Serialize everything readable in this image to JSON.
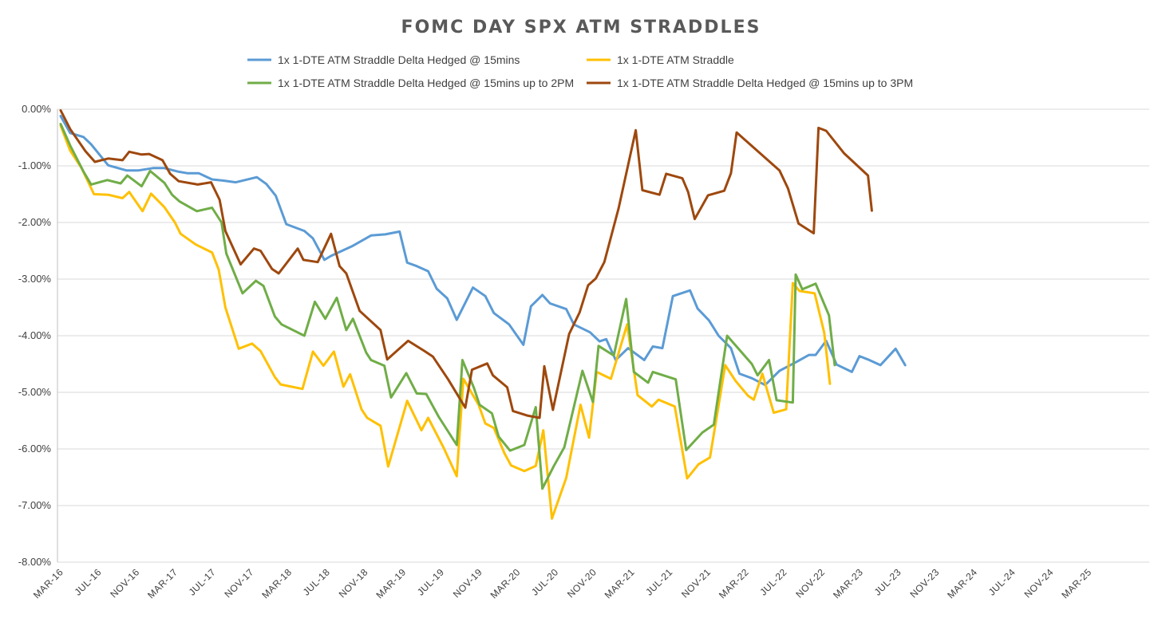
{
  "chart_data": {
    "type": "line",
    "title": "FOMC DAY SPX ATM STRADDLES",
    "xlabel": "",
    "ylabel": "",
    "ylim": [
      -0.08,
      0.0
    ],
    "yticks": [
      0.0,
      -0.01,
      -0.02,
      -0.03,
      -0.04,
      -0.05,
      -0.06,
      -0.07,
      -0.08
    ],
    "ytick_labels": [
      "0.00%",
      "-1.00%",
      "-2.00%",
      "-3.00%",
      "-4.00%",
      "-5.00%",
      "-6.00%",
      "-7.00%",
      "-8.00%"
    ],
    "x_tick_labels": [
      "MAR-16",
      "JUL-16",
      "NOV-16",
      "MAR-17",
      "JUL-17",
      "NOV-17",
      "MAR-18",
      "JUL-18",
      "NOV-18",
      "MAR-19",
      "JUL-19",
      "NOV-19",
      "MAR-20",
      "JUL-20",
      "NOV-20",
      "MAR-21",
      "JUL-21",
      "NOV-21",
      "MAR-22",
      "JUL-22",
      "NOV-22",
      "MAR-23",
      "JUL-23",
      "NOV-23",
      "MAR-24",
      "JUL-24",
      "NOV-24",
      "MAR-25"
    ],
    "x_tick_months": [
      0,
      4,
      8,
      12,
      16,
      20,
      24,
      28,
      32,
      36,
      40,
      44,
      48,
      52,
      56,
      60,
      64,
      68,
      72,
      76,
      80,
      84,
      88,
      92,
      96,
      100,
      104,
      108
    ],
    "x_range_months": [
      0,
      114
    ],
    "grid": true,
    "legend_position": "top",
    "series": [
      {
        "name": "1x 1-DTE ATM Straddle Delta Hedged @ 15mins",
        "color": "#5B9BD5",
        "points": [
          [
            0,
            -0.12
          ],
          [
            1,
            -0.42
          ],
          [
            2.4,
            -0.49
          ],
          [
            3.2,
            -0.62
          ],
          [
            5,
            -0.99
          ],
          [
            6.9,
            -1.08
          ],
          [
            8.2,
            -1.08
          ],
          [
            9.7,
            -1.04
          ],
          [
            10.9,
            -1.04
          ],
          [
            12.3,
            -1.1
          ],
          [
            13.3,
            -1.13
          ],
          [
            14.5,
            -1.13
          ],
          [
            15.9,
            -1.24
          ],
          [
            17.1,
            -1.26
          ],
          [
            18.4,
            -1.29
          ],
          [
            20.6,
            -1.2
          ],
          [
            21.6,
            -1.32
          ],
          [
            22.6,
            -1.53
          ],
          [
            23.7,
            -2.03
          ],
          [
            25.6,
            -2.15
          ],
          [
            26.5,
            -2.28
          ],
          [
            27.7,
            -2.66
          ],
          [
            28.4,
            -2.59
          ],
          [
            30.6,
            -2.42
          ],
          [
            32.6,
            -2.23
          ],
          [
            34.1,
            -2.21
          ],
          [
            35.6,
            -2.16
          ],
          [
            36.4,
            -2.71
          ],
          [
            37.4,
            -2.77
          ],
          [
            38.6,
            -2.86
          ],
          [
            39.5,
            -3.17
          ],
          [
            40.6,
            -3.34
          ],
          [
            41.6,
            -3.72
          ],
          [
            43.3,
            -3.15
          ],
          [
            44.6,
            -3.3
          ],
          [
            45.5,
            -3.6
          ],
          [
            47.1,
            -3.8
          ],
          [
            48.6,
            -4.16
          ],
          [
            49.4,
            -3.48
          ],
          [
            50.6,
            -3.28
          ],
          [
            51.4,
            -3.43
          ],
          [
            53.1,
            -3.53
          ],
          [
            53.9,
            -3.8
          ],
          [
            55.6,
            -3.94
          ],
          [
            56.6,
            -4.1
          ],
          [
            57.3,
            -4.06
          ],
          [
            58.3,
            -4.43
          ],
          [
            59.6,
            -4.22
          ],
          [
            61.3,
            -4.43
          ],
          [
            62.2,
            -4.19
          ],
          [
            63.2,
            -4.22
          ],
          [
            64.3,
            -3.3
          ],
          [
            66.1,
            -3.2
          ],
          [
            66.9,
            -3.52
          ],
          [
            68.1,
            -3.73
          ],
          [
            69.1,
            -4.0
          ],
          [
            70.4,
            -4.22
          ],
          [
            71.3,
            -4.67
          ],
          [
            72.6,
            -4.75
          ],
          [
            74,
            -4.87
          ],
          [
            75.5,
            -4.62
          ],
          [
            77.3,
            -4.46
          ],
          [
            78.6,
            -4.34
          ],
          [
            79.3,
            -4.34
          ],
          [
            80.4,
            -4.09
          ],
          [
            81.5,
            -4.51
          ],
          [
            83.1,
            -4.64
          ],
          [
            83.9,
            -4.36
          ],
          [
            84.8,
            -4.42
          ],
          [
            86.1,
            -4.52
          ],
          [
            87.7,
            -4.23
          ],
          [
            88.7,
            -4.52
          ]
        ]
      },
      {
        "name": "1x 1-DTE ATM Straddle",
        "color": "#FFC000",
        "points": [
          [
            0,
            -0.29
          ],
          [
            1,
            -0.73
          ],
          [
            2.2,
            -1.04
          ],
          [
            3.5,
            -1.5
          ],
          [
            5,
            -1.51
          ],
          [
            6.5,
            -1.57
          ],
          [
            7.2,
            -1.46
          ],
          [
            8.6,
            -1.8
          ],
          [
            9.5,
            -1.49
          ],
          [
            10.9,
            -1.73
          ],
          [
            12,
            -2.0
          ],
          [
            12.6,
            -2.2
          ],
          [
            14.2,
            -2.39
          ],
          [
            15.9,
            -2.53
          ],
          [
            16.6,
            -2.83
          ],
          [
            17.3,
            -3.5
          ],
          [
            18.7,
            -4.23
          ],
          [
            20.1,
            -4.14
          ],
          [
            21,
            -4.27
          ],
          [
            22.5,
            -4.73
          ],
          [
            23.1,
            -4.86
          ],
          [
            25.4,
            -4.94
          ],
          [
            26.5,
            -4.28
          ],
          [
            27.6,
            -4.53
          ],
          [
            28.7,
            -4.28
          ],
          [
            29.7,
            -4.9
          ],
          [
            30.4,
            -4.68
          ],
          [
            31.6,
            -5.3
          ],
          [
            32.2,
            -5.45
          ],
          [
            33.6,
            -5.59
          ],
          [
            34.4,
            -6.31
          ],
          [
            36.4,
            -5.15
          ],
          [
            37.9,
            -5.67
          ],
          [
            38.6,
            -5.45
          ],
          [
            40.2,
            -5.97
          ],
          [
            41.6,
            -6.48
          ],
          [
            42.3,
            -4.76
          ],
          [
            43.9,
            -5.22
          ],
          [
            44.6,
            -5.55
          ],
          [
            45.5,
            -5.63
          ],
          [
            46.6,
            -6.07
          ],
          [
            47.3,
            -6.29
          ],
          [
            48.7,
            -6.39
          ],
          [
            49.9,
            -6.3
          ],
          [
            50.7,
            -5.67
          ],
          [
            51.6,
            -7.23
          ],
          [
            53.1,
            -6.51
          ],
          [
            54.6,
            -5.22
          ],
          [
            55.5,
            -5.8
          ],
          [
            56.3,
            -4.64
          ],
          [
            57.8,
            -4.76
          ],
          [
            59.5,
            -3.8
          ],
          [
            60.6,
            -5.05
          ],
          [
            62.1,
            -5.25
          ],
          [
            62.8,
            -5.13
          ],
          [
            64.5,
            -5.25
          ],
          [
            65.8,
            -6.52
          ],
          [
            67,
            -6.27
          ],
          [
            68.2,
            -6.15
          ],
          [
            69.8,
            -4.52
          ],
          [
            70.9,
            -4.8
          ],
          [
            72.2,
            -5.06
          ],
          [
            72.8,
            -5.13
          ],
          [
            73.7,
            -4.67
          ],
          [
            74.9,
            -5.36
          ],
          [
            76.2,
            -5.3
          ],
          [
            76.9,
            -3.07
          ],
          [
            77.6,
            -3.21
          ],
          [
            79.2,
            -3.25
          ],
          [
            80.2,
            -3.95
          ],
          [
            80.8,
            -4.85
          ]
        ]
      },
      {
        "name": "1x 1-DTE ATM Straddle Delta Hedged @ 15mins up to 2PM",
        "color": "#70AD47",
        "points": [
          [
            0,
            -0.26
          ],
          [
            1,
            -0.64
          ],
          [
            2.4,
            -1.1
          ],
          [
            3.2,
            -1.33
          ],
          [
            4.9,
            -1.25
          ],
          [
            6.3,
            -1.31
          ],
          [
            7,
            -1.17
          ],
          [
            8.5,
            -1.36
          ],
          [
            9.4,
            -1.09
          ],
          [
            10.9,
            -1.3
          ],
          [
            11.7,
            -1.51
          ],
          [
            12.5,
            -1.63
          ],
          [
            14.3,
            -1.8
          ],
          [
            15.9,
            -1.74
          ],
          [
            16.9,
            -2.0
          ],
          [
            17.4,
            -2.55
          ],
          [
            19.1,
            -3.25
          ],
          [
            20.5,
            -3.03
          ],
          [
            21.3,
            -3.12
          ],
          [
            22.5,
            -3.66
          ],
          [
            23.2,
            -3.8
          ],
          [
            25.6,
            -4.0
          ],
          [
            26.7,
            -3.4
          ],
          [
            27.8,
            -3.7
          ],
          [
            29,
            -3.33
          ],
          [
            30,
            -3.9
          ],
          [
            30.7,
            -3.7
          ],
          [
            32.1,
            -4.3
          ],
          [
            32.6,
            -4.43
          ],
          [
            34,
            -4.53
          ],
          [
            34.7,
            -5.09
          ],
          [
            36.3,
            -4.66
          ],
          [
            37.4,
            -5.02
          ],
          [
            38.4,
            -5.03
          ],
          [
            39.7,
            -5.43
          ],
          [
            41.6,
            -5.93
          ],
          [
            42.2,
            -4.43
          ],
          [
            43.4,
            -4.92
          ],
          [
            44,
            -5.22
          ],
          [
            45.3,
            -5.37
          ],
          [
            46,
            -5.78
          ],
          [
            47.2,
            -6.03
          ],
          [
            48.7,
            -5.93
          ],
          [
            49.9,
            -5.26
          ],
          [
            50.6,
            -6.7
          ],
          [
            51.8,
            -6.3
          ],
          [
            52.9,
            -5.97
          ],
          [
            54.8,
            -4.62
          ],
          [
            55.9,
            -5.17
          ],
          [
            56.5,
            -4.18
          ],
          [
            58.1,
            -4.35
          ],
          [
            59.4,
            -3.35
          ],
          [
            60.2,
            -4.64
          ],
          [
            61.7,
            -4.83
          ],
          [
            62.2,
            -4.64
          ],
          [
            64.6,
            -4.77
          ],
          [
            65.7,
            -6.02
          ],
          [
            67.4,
            -5.71
          ],
          [
            68.6,
            -5.57
          ],
          [
            70,
            -4.0
          ],
          [
            72.6,
            -4.5
          ],
          [
            73.2,
            -4.7
          ],
          [
            74.4,
            -4.43
          ],
          [
            75.2,
            -5.14
          ],
          [
            76.9,
            -5.18
          ],
          [
            77.2,
            -2.92
          ],
          [
            77.9,
            -3.18
          ],
          [
            79.3,
            -3.08
          ],
          [
            80.7,
            -3.64
          ],
          [
            81.3,
            -4.52
          ]
        ]
      },
      {
        "name": "1x 1-DTE ATM Straddle Delta Hedged @ 15mins up to 3PM",
        "color": "#9E480E",
        "points": [
          [
            0,
            -0.02
          ],
          [
            1,
            -0.35
          ],
          [
            2.6,
            -0.74
          ],
          [
            3.6,
            -0.93
          ],
          [
            5,
            -0.87
          ],
          [
            6.5,
            -0.9
          ],
          [
            7.2,
            -0.75
          ],
          [
            8.5,
            -0.8
          ],
          [
            9.3,
            -0.79
          ],
          [
            10.7,
            -0.9
          ],
          [
            11.5,
            -1.14
          ],
          [
            12.4,
            -1.27
          ],
          [
            14.4,
            -1.33
          ],
          [
            15.8,
            -1.29
          ],
          [
            16.7,
            -1.6
          ],
          [
            17.3,
            -2.15
          ],
          [
            18.9,
            -2.74
          ],
          [
            20.3,
            -2.46
          ],
          [
            21,
            -2.5
          ],
          [
            22.2,
            -2.82
          ],
          [
            22.9,
            -2.9
          ],
          [
            24.9,
            -2.46
          ],
          [
            25.5,
            -2.66
          ],
          [
            27,
            -2.7
          ],
          [
            28.4,
            -2.2
          ],
          [
            29.3,
            -2.77
          ],
          [
            30,
            -2.9
          ],
          [
            31.4,
            -3.56
          ],
          [
            33.6,
            -3.9
          ],
          [
            34.3,
            -4.42
          ],
          [
            36.5,
            -4.09
          ],
          [
            38.3,
            -4.28
          ],
          [
            39.1,
            -4.37
          ],
          [
            40.7,
            -4.77
          ],
          [
            42.5,
            -5.27
          ],
          [
            43.2,
            -4.6
          ],
          [
            44.8,
            -4.49
          ],
          [
            45.4,
            -4.7
          ],
          [
            46.9,
            -4.91
          ],
          [
            47.5,
            -5.33
          ],
          [
            49,
            -5.41
          ],
          [
            50.3,
            -5.45
          ],
          [
            50.8,
            -4.54
          ],
          [
            51.7,
            -5.31
          ],
          [
            53.4,
            -3.97
          ],
          [
            54.5,
            -3.59
          ],
          [
            55.4,
            -3.11
          ],
          [
            56.2,
            -2.99
          ],
          [
            57.1,
            -2.7
          ],
          [
            58.6,
            -1.75
          ],
          [
            60.4,
            -0.37
          ],
          [
            61.1,
            -1.43
          ],
          [
            62.9,
            -1.51
          ],
          [
            63.6,
            -1.14
          ],
          [
            65.3,
            -1.22
          ],
          [
            65.9,
            -1.46
          ],
          [
            66.6,
            -1.94
          ],
          [
            68,
            -1.52
          ],
          [
            69.7,
            -1.44
          ],
          [
            70.4,
            -1.13
          ],
          [
            71,
            -0.41
          ],
          [
            75.5,
            -1.08
          ],
          [
            76.4,
            -1.4
          ],
          [
            77.5,
            -2.02
          ],
          [
            79.1,
            -2.19
          ],
          [
            79.6,
            -0.33
          ],
          [
            80.4,
            -0.38
          ],
          [
            82.3,
            -0.78
          ],
          [
            84.8,
            -1.17
          ],
          [
            85.2,
            -1.79
          ]
        ]
      }
    ]
  }
}
